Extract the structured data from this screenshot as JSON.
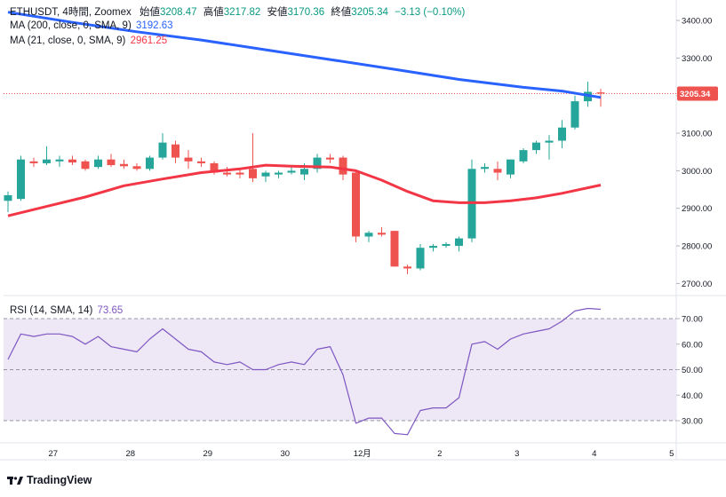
{
  "header": {
    "symbol": "ETHUSDT, 4時間, Zoomex",
    "open_label": "始値",
    "open": "3208.47",
    "high_label": "高値",
    "high": "3217.82",
    "low_label": "安値",
    "low": "3170.36",
    "close_label": "終値",
    "close": "3205.34",
    "change": "−3.13 (−0.10%)"
  },
  "indicators": {
    "ma200_label": "MA (200, close, 0, SMA, 9)",
    "ma200_value": "3192.63",
    "ma21_label": "MA (21, close, 0, SMA, 9)",
    "ma21_value": "2961.25",
    "rsi_label": "RSI (14, SMA, 14)",
    "rsi_value": "73.65"
  },
  "branding": {
    "name": "TradingView"
  },
  "colors": {
    "up": "#26a69a",
    "down": "#ef5350",
    "ma200": "#2962ff",
    "ma21": "#f23645",
    "rsi": "#7e57c2",
    "rsi_band": "#ede7f6",
    "price_tag": "#ef5350"
  },
  "chart_data": {
    "type": "candlestick",
    "title": "ETHUSDT, 4時間, Zoomex",
    "price_axis": {
      "ylim": [
        2675,
        3445
      ],
      "ticks": [
        2700,
        2800,
        2900,
        3000,
        3100,
        3200,
        3300,
        3400
      ],
      "tick_labels": [
        "2700.00",
        "2800.00",
        "2900.00",
        "3000.00",
        "3100.00",
        "3200.00",
        "3300.00",
        "3400.00"
      ]
    },
    "last_price": 3205.34,
    "last_price_label": "3205.34",
    "x_axis": {
      "labels": [
        "27",
        "28",
        "29",
        "30",
        "12月",
        "2",
        "3",
        "4",
        "5"
      ],
      "label_positions": [
        3.5,
        9.5,
        15.5,
        21.5,
        27.5,
        33.5,
        39.5,
        45.5,
        51.5
      ]
    },
    "candles": [
      {
        "o": 2920,
        "h": 2945,
        "l": 2890,
        "c": 2935
      },
      {
        "o": 2925,
        "h": 3040,
        "l": 2920,
        "c": 3030
      },
      {
        "o": 3025,
        "h": 3035,
        "l": 3010,
        "c": 3020
      },
      {
        "o": 3020,
        "h": 3065,
        "l": 3015,
        "c": 3030
      },
      {
        "o": 3025,
        "h": 3040,
        "l": 3010,
        "c": 3030
      },
      {
        "o": 3030,
        "h": 3040,
        "l": 3015,
        "c": 3022
      },
      {
        "o": 3025,
        "h": 3030,
        "l": 3000,
        "c": 3005
      },
      {
        "o": 3010,
        "h": 3040,
        "l": 3005,
        "c": 3030
      },
      {
        "o": 3030,
        "h": 3045,
        "l": 3010,
        "c": 3015
      },
      {
        "o": 3018,
        "h": 3030,
        "l": 3005,
        "c": 3012
      },
      {
        "o": 3012,
        "h": 3020,
        "l": 3000,
        "c": 3005
      },
      {
        "o": 3005,
        "h": 3040,
        "l": 3000,
        "c": 3035
      },
      {
        "o": 3035,
        "h": 3100,
        "l": 3030,
        "c": 3075
      },
      {
        "o": 3070,
        "h": 3080,
        "l": 3020,
        "c": 3035
      },
      {
        "o": 3035,
        "h": 3055,
        "l": 3005,
        "c": 3025
      },
      {
        "o": 3025,
        "h": 3035,
        "l": 3010,
        "c": 3020
      },
      {
        "o": 3020,
        "h": 3025,
        "l": 2990,
        "c": 2995
      },
      {
        "o": 2995,
        "h": 3010,
        "l": 2985,
        "c": 2990
      },
      {
        "o": 2995,
        "h": 3005,
        "l": 2980,
        "c": 2990
      },
      {
        "o": 3005,
        "h": 3100,
        "l": 2970,
        "c": 2980
      },
      {
        "o": 2985,
        "h": 3000,
        "l": 2970,
        "c": 2995
      },
      {
        "o": 2990,
        "h": 3000,
        "l": 2980,
        "c": 2995
      },
      {
        "o": 2995,
        "h": 3010,
        "l": 2990,
        "c": 3000
      },
      {
        "o": 2990,
        "h": 3020,
        "l": 2975,
        "c": 3005
      },
      {
        "o": 3005,
        "h": 3045,
        "l": 2995,
        "c": 3035
      },
      {
        "o": 3035,
        "h": 3045,
        "l": 3020,
        "c": 3030
      },
      {
        "o": 3035,
        "h": 3040,
        "l": 2975,
        "c": 2990
      },
      {
        "o": 2995,
        "h": 3000,
        "l": 2810,
        "c": 2825
      },
      {
        "o": 2825,
        "h": 2840,
        "l": 2810,
        "c": 2835
      },
      {
        "o": 2835,
        "h": 2850,
        "l": 2825,
        "c": 2830
      },
      {
        "o": 2840,
        "h": 2840,
        "l": 2745,
        "c": 2745
      },
      {
        "o": 2745,
        "h": 2750,
        "l": 2725,
        "c": 2740
      },
      {
        "o": 2740,
        "h": 2805,
        "l": 2735,
        "c": 2795
      },
      {
        "o": 2795,
        "h": 2805,
        "l": 2785,
        "c": 2800
      },
      {
        "o": 2800,
        "h": 2810,
        "l": 2795,
        "c": 2805
      },
      {
        "o": 2800,
        "h": 2825,
        "l": 2785,
        "c": 2820
      },
      {
        "o": 2820,
        "h": 3030,
        "l": 2810,
        "c": 3005
      },
      {
        "o": 3005,
        "h": 3020,
        "l": 2995,
        "c": 3010
      },
      {
        "o": 3005,
        "h": 3025,
        "l": 2975,
        "c": 2995
      },
      {
        "o": 2990,
        "h": 3030,
        "l": 2980,
        "c": 3030
      },
      {
        "o": 3025,
        "h": 3060,
        "l": 3020,
        "c": 3055
      },
      {
        "o": 3055,
        "h": 3080,
        "l": 3045,
        "c": 3075
      },
      {
        "o": 3075,
        "h": 3095,
        "l": 3030,
        "c": 3080
      },
      {
        "o": 3080,
        "h": 3135,
        "l": 3060,
        "c": 3115
      },
      {
        "o": 3115,
        "h": 3200,
        "l": 3110,
        "c": 3185
      },
      {
        "o": 3185,
        "h": 3237,
        "l": 3170,
        "c": 3210
      },
      {
        "o": 3208.47,
        "h": 3217.82,
        "l": 3170.36,
        "c": 3205.34
      }
    ],
    "ma200": [
      [
        0,
        3422
      ],
      [
        5,
        3395
      ],
      [
        10,
        3370
      ],
      [
        15,
        3348
      ],
      [
        20,
        3322
      ],
      [
        25,
        3296
      ],
      [
        30,
        3270
      ],
      [
        35,
        3243
      ],
      [
        40,
        3222
      ],
      [
        43,
        3212
      ],
      [
        46,
        3195
      ]
    ],
    "ma21": [
      [
        0,
        2880
      ],
      [
        3,
        2905
      ],
      [
        6,
        2930
      ],
      [
        9,
        2960
      ],
      [
        12,
        2978
      ],
      [
        15,
        2995
      ],
      [
        18,
        3005
      ],
      [
        20,
        3015
      ],
      [
        22,
        3012
      ],
      [
        25,
        3010
      ],
      [
        27,
        3000
      ],
      [
        29,
        2975
      ],
      [
        31,
        2945
      ],
      [
        33,
        2920
      ],
      [
        35,
        2915
      ],
      [
        37,
        2915
      ],
      [
        39,
        2920
      ],
      [
        41,
        2928
      ],
      [
        43,
        2940
      ],
      [
        46,
        2962
      ]
    ],
    "rsi_axis": {
      "ylim": [
        22,
        78
      ],
      "ticks": [
        30,
        40,
        50,
        60,
        70
      ],
      "tick_labels": [
        "30.00",
        "40.00",
        "50.00",
        "60.00",
        "70.00"
      ],
      "bands": [
        30,
        50,
        70
      ]
    },
    "rsi": [
      [
        0,
        54
      ],
      [
        1,
        64
      ],
      [
        2,
        63
      ],
      [
        3,
        64
      ],
      [
        4,
        64
      ],
      [
        5,
        63
      ],
      [
        6,
        60
      ],
      [
        7,
        63
      ],
      [
        8,
        59
      ],
      [
        9,
        58
      ],
      [
        10,
        57
      ],
      [
        11,
        62
      ],
      [
        12,
        66
      ],
      [
        13,
        62
      ],
      [
        14,
        58
      ],
      [
        15,
        57
      ],
      [
        16,
        53
      ],
      [
        17,
        52
      ],
      [
        18,
        53
      ],
      [
        19,
        50
      ],
      [
        20,
        50
      ],
      [
        21,
        52
      ],
      [
        22,
        53
      ],
      [
        23,
        52
      ],
      [
        24,
        58
      ],
      [
        25,
        59
      ],
      [
        26,
        48
      ],
      [
        27,
        29
      ],
      [
        28,
        31
      ],
      [
        29,
        31
      ],
      [
        30,
        25
      ],
      [
        31,
        24.5
      ],
      [
        32,
        34
      ],
      [
        33,
        35
      ],
      [
        34,
        35
      ],
      [
        35,
        39
      ],
      [
        36,
        60
      ],
      [
        37,
        61
      ],
      [
        38,
        58
      ],
      [
        39,
        62
      ],
      [
        40,
        64
      ],
      [
        41,
        65
      ],
      [
        42,
        66
      ],
      [
        43,
        69
      ],
      [
        44,
        73
      ],
      [
        45,
        74
      ],
      [
        46,
        73.65
      ]
    ]
  }
}
